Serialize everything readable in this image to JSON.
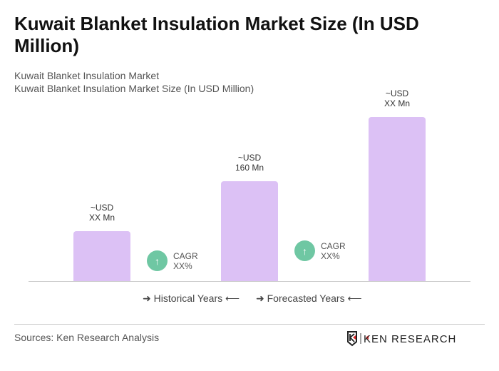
{
  "title": "Kuwait Blanket Insulation Market Size (In USD Million)",
  "subtitle1": "Kuwait Blanket Insulation Market",
  "subtitle2": "Kuwait Blanket Insulation Market Size (In USD Million)",
  "chart_data": {
    "type": "bar",
    "categories": [
      "",
      "",
      ""
    ],
    "values": [
      80,
      160,
      263
    ],
    "data_labels": [
      [
        "~USD",
        "XX Mn"
      ],
      [
        "~USD",
        "160 Mn"
      ],
      [
        "~USD",
        "XX Mn"
      ]
    ],
    "bar_color": "#dcc1f5",
    "grid": false,
    "ylim": [
      0,
      280
    ]
  },
  "cagr": [
    {
      "label": "CAGR",
      "value": "XX%"
    },
    {
      "label": "CAGR",
      "value": "XX%"
    }
  ],
  "cagr_color": "#6fc7a3",
  "legend": {
    "historical": "Historical Years",
    "forecasted": "Forecasted Years"
  },
  "source": "Sources: Ken Research Analysis",
  "logo_text": "KEN RESEARCH"
}
